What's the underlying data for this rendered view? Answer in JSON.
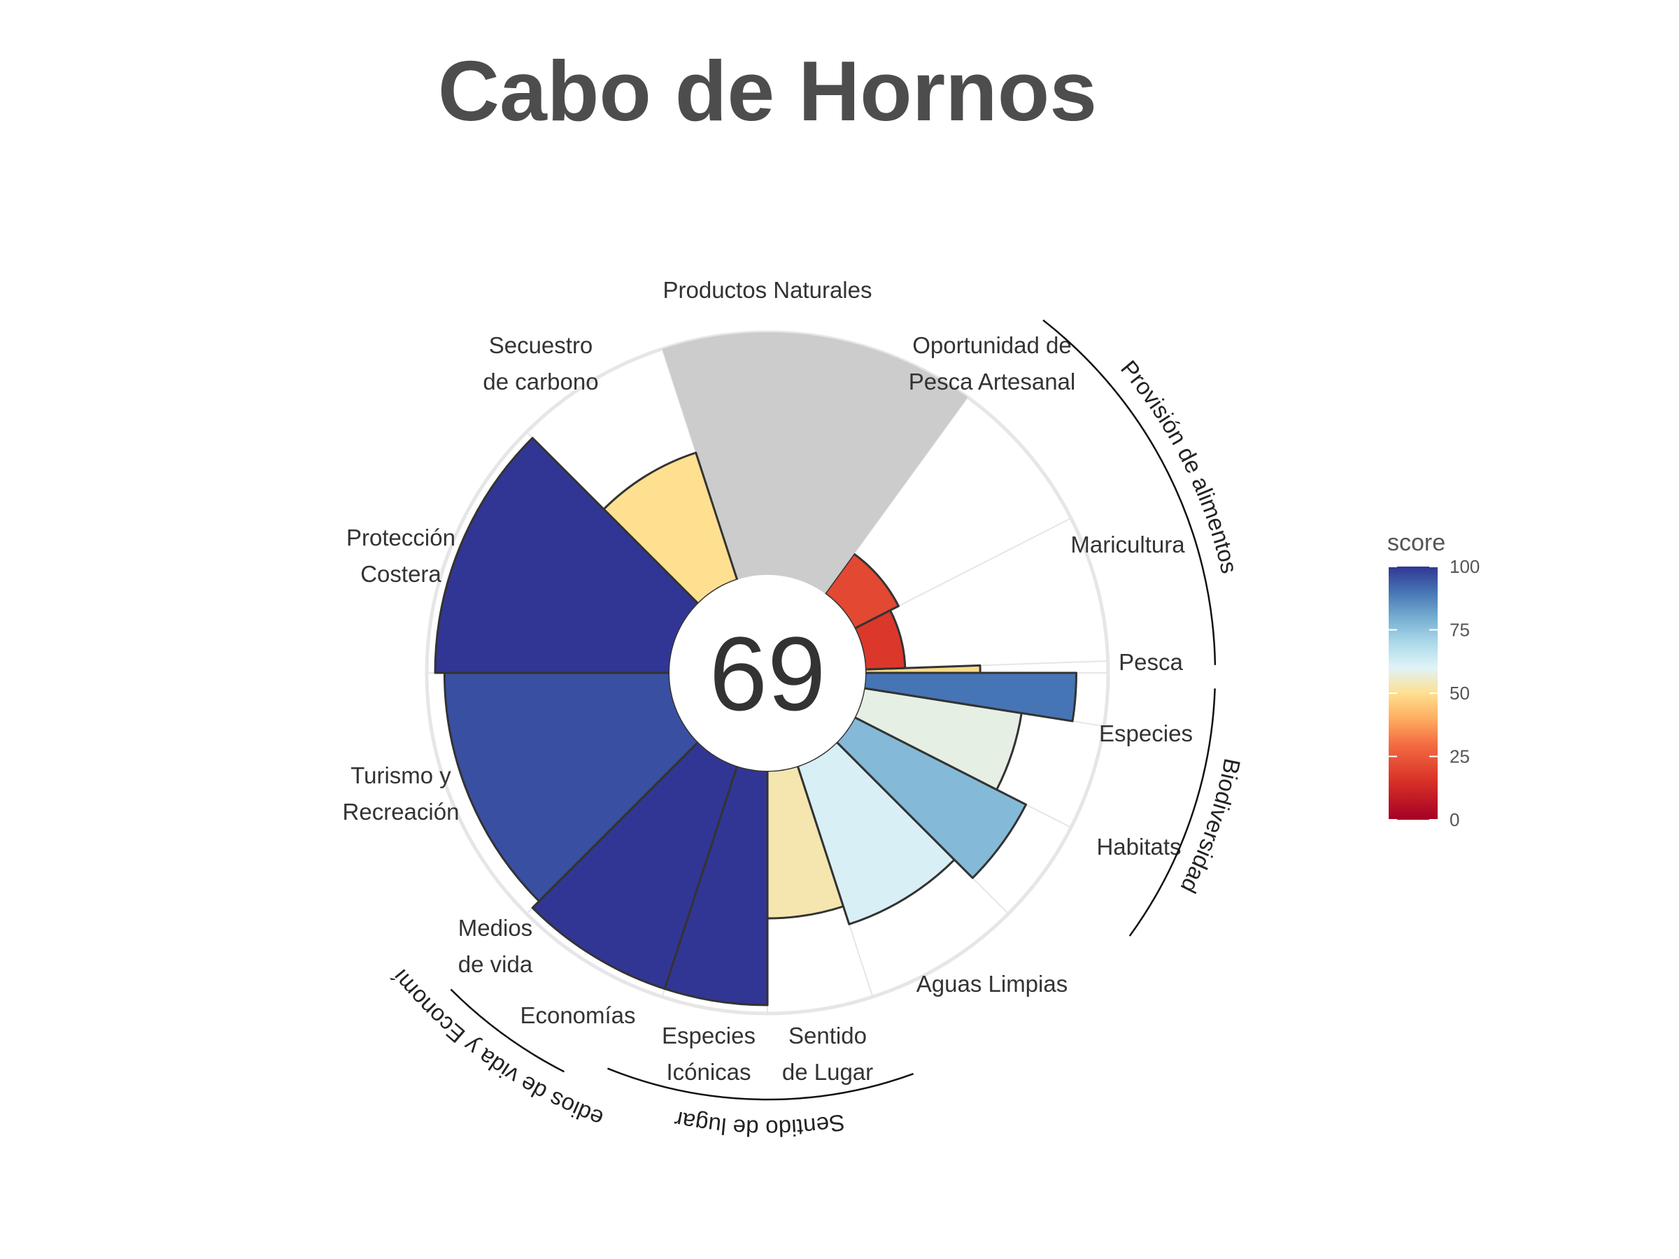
{
  "chart_data": {
    "type": "flower",
    "title": "Cabo de Hornos",
    "center_score": "69",
    "max_score": 100,
    "petals": [
      {
        "label": "Pesca",
        "value": 49,
        "start_deg": 90,
        "end_deg": 88
      },
      {
        "label": "Maricultura",
        "value": 17,
        "start_deg": 88,
        "end_deg": 63
      },
      {
        "label": "Oportunidad de Pesca Artesanal",
        "value": 21,
        "start_deg": 63,
        "end_deg": 36
      },
      {
        "label": "Productos Naturales",
        "value": null,
        "start_deg": 36,
        "end_deg": -18
      },
      {
        "label": "Secuestro de carbono",
        "value": 57,
        "start_deg": -18,
        "end_deg": -45
      },
      {
        "label": "Protección Costera",
        "value": 100,
        "start_deg": -45,
        "end_deg": -90
      },
      {
        "label": "Turismo y Recreación",
        "value": 96,
        "start_deg": -90,
        "end_deg": -135
      },
      {
        "label": "Medios de vida",
        "value": 100,
        "start_deg": -135,
        "end_deg": -162
      },
      {
        "label": "Economías",
        "value": 100,
        "start_deg": -162,
        "end_deg": -180
      },
      {
        "label": "Especies Icónicas",
        "value": 63,
        "start_deg": 180,
        "end_deg": 162
      },
      {
        "label": "Sentido de Lugar",
        "value": 71,
        "start_deg": 162,
        "end_deg": 135
      },
      {
        "label": "Aguas Limpias",
        "value": 82,
        "start_deg": 135,
        "end_deg": 117
      },
      {
        "label": "Habitats",
        "value": 68,
        "start_deg": 117,
        "end_deg": 99
      },
      {
        "label": "Especies",
        "value": 90,
        "start_deg": 99,
        "end_deg": 90
      }
    ],
    "groups": [
      {
        "label": "Provisión de alimentos"
      },
      {
        "label": "Biodiversidad"
      },
      {
        "label": "Sentido de lugar"
      },
      {
        "label": "Medios de vida y Economías"
      }
    ],
    "legend": {
      "title": "score",
      "ticks": [
        "100",
        "75",
        "50",
        "25",
        "0"
      ],
      "colors": [
        "#313695",
        "#4575b4",
        "#74add1",
        "#abd9e9",
        "#e0f3f8",
        "#fee090",
        "#fdae61",
        "#f46d43",
        "#d73027",
        "#a50026"
      ]
    },
    "na_color": "#cccccc"
  }
}
